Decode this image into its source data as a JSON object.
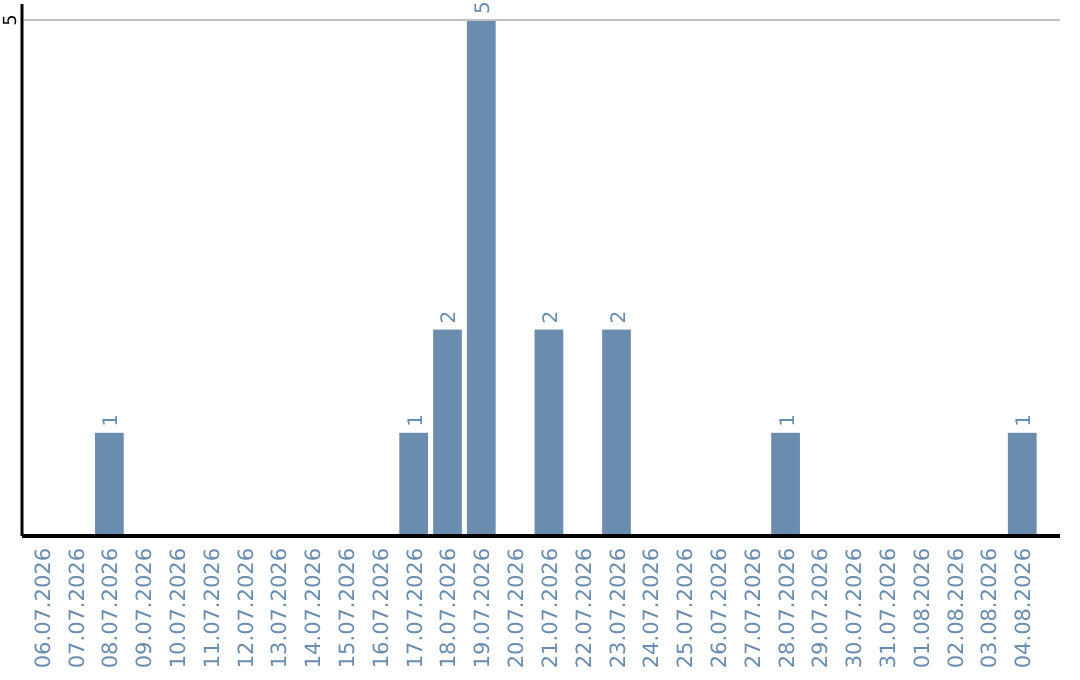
{
  "chart_data": {
    "type": "bar",
    "categories": [
      "06.07.2026",
      "07.07.2026",
      "08.07.2026",
      "09.07.2026",
      "10.07.2026",
      "11.07.2026",
      "12.07.2026",
      "13.07.2026",
      "14.07.2026",
      "15.07.2026",
      "16.07.2026",
      "17.07.2026",
      "18.07.2026",
      "19.07.2026",
      "20.07.2026",
      "21.07.2026",
      "22.07.2026",
      "23.07.2026",
      "24.07.2026",
      "25.07.2026",
      "26.07.2026",
      "27.07.2026",
      "28.07.2026",
      "29.07.2026",
      "30.07.2026",
      "31.07.2026",
      "01.08.2026",
      "02.08.2026",
      "03.08.2026",
      "04.08.2026"
    ],
    "values": [
      0,
      0,
      1,
      0,
      0,
      0,
      0,
      0,
      0,
      0,
      0,
      1,
      2,
      5,
      0,
      2,
      0,
      2,
      0,
      0,
      0,
      0,
      1,
      0,
      0,
      0,
      0,
      0,
      0,
      1
    ],
    "value_labels": [
      null,
      null,
      "1",
      null,
      null,
      null,
      null,
      null,
      null,
      null,
      null,
      "1",
      "2",
      "5",
      null,
      "2",
      null,
      "2",
      null,
      null,
      null,
      null,
      "1",
      null,
      null,
      null,
      null,
      null,
      null,
      "1"
    ],
    "color": "#6a8caf",
    "ylim": [
      0,
      5
    ],
    "yticks": [
      5
    ],
    "ref_lines": [
      {
        "axis": "y",
        "value": 5,
        "color": "#c0c0c0"
      }
    ]
  }
}
